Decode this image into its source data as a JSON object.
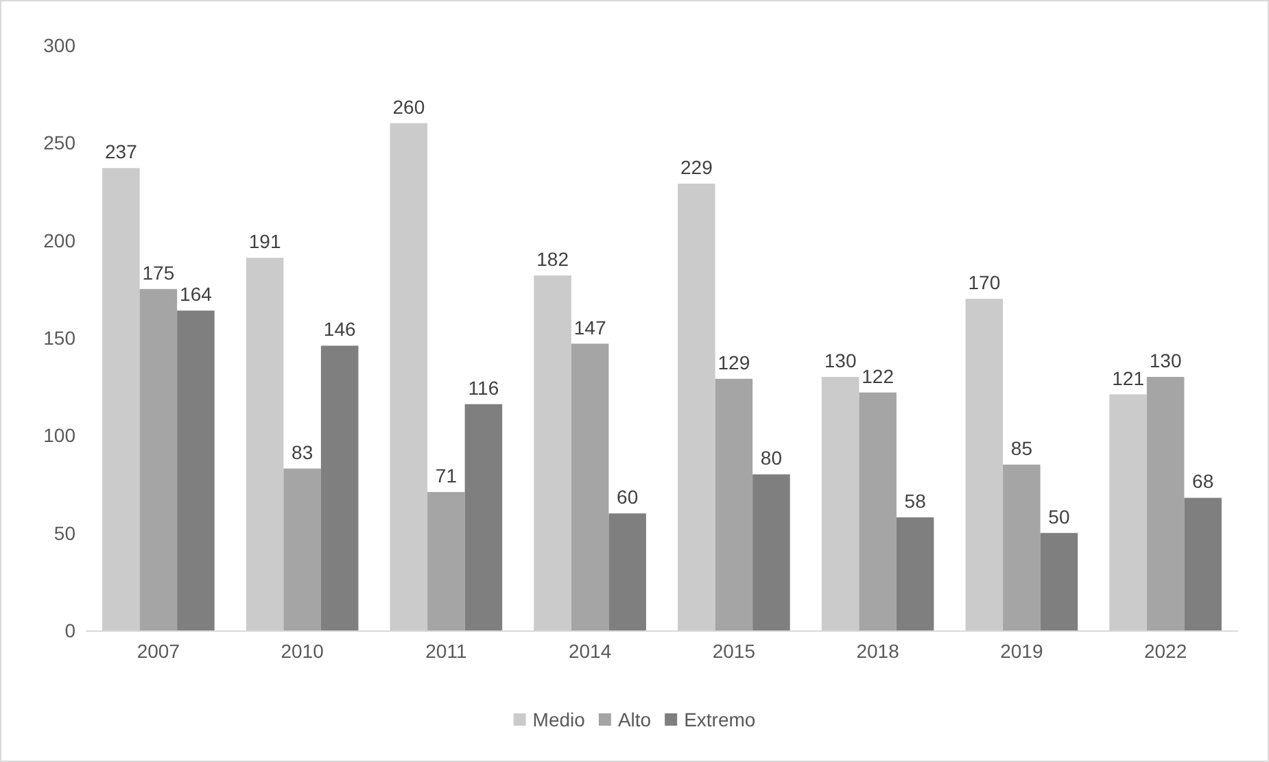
{
  "chart_data": {
    "type": "bar",
    "categories": [
      "2007",
      "2010",
      "2011",
      "2014",
      "2015",
      "2018",
      "2019",
      "2022"
    ],
    "series": [
      {
        "name": "Medio",
        "color": "#cbcbcb",
        "values": [
          237,
          191,
          260,
          182,
          229,
          130,
          170,
          121
        ]
      },
      {
        "name": "Alto",
        "color": "#a5a5a5",
        "values": [
          175,
          83,
          71,
          147,
          129,
          122,
          85,
          130
        ]
      },
      {
        "name": "Extremo",
        "color": "#7f7f7f",
        "values": [
          164,
          146,
          116,
          60,
          80,
          58,
          50,
          68
        ]
      }
    ],
    "ylim": [
      0,
      300
    ],
    "yticks": [
      0,
      50,
      100,
      150,
      200,
      250,
      300
    ],
    "grid": false,
    "legend": "bottom",
    "data_labels": true
  }
}
